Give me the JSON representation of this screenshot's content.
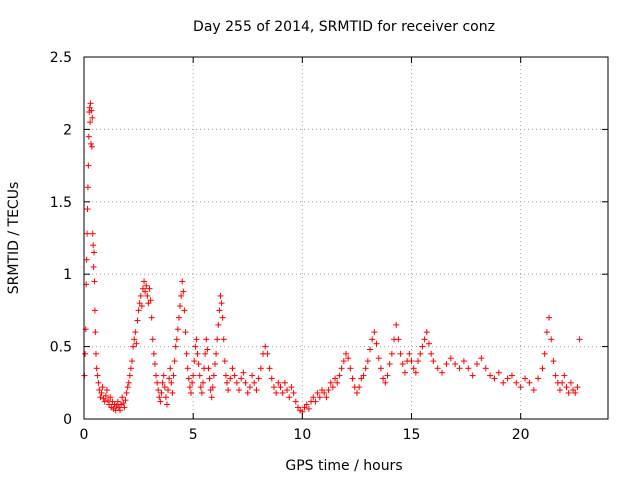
{
  "chart_data": {
    "type": "scatter",
    "title": "Day 255 of 2014, SRMTID for receiver conz",
    "xlabel": "GPS time / hours",
    "ylabel": "SRMTID / TECUs",
    "xlim": [
      0,
      24
    ],
    "ylim": [
      0,
      2.5
    ],
    "x_ticks": [
      0,
      5,
      10,
      15,
      20
    ],
    "x_tick_labels": [
      "0",
      "5",
      "10",
      "15",
      "20"
    ],
    "y_ticks": [
      0,
      0.5,
      1,
      1.5,
      2,
      2.5
    ],
    "y_tick_labels": [
      "0",
      "0.5",
      "1",
      "1.5",
      "2",
      "2.5"
    ],
    "grid": true,
    "marker": "+",
    "color": "#ff0000",
    "series": [
      {
        "name": "SRMTID",
        "points": [
          [
            0.02,
            0.3
          ],
          [
            0.05,
            0.45
          ],
          [
            0.08,
            0.62
          ],
          [
            0.1,
            0.93
          ],
          [
            0.12,
            1.1
          ],
          [
            0.14,
            1.28
          ],
          [
            0.16,
            1.45
          ],
          [
            0.18,
            1.6
          ],
          [
            0.2,
            1.75
          ],
          [
            0.22,
            1.95
          ],
          [
            0.24,
            2.12
          ],
          [
            0.26,
            2.15
          ],
          [
            0.28,
            2.05
          ],
          [
            0.3,
            2.18
          ],
          [
            0.32,
            1.9
          ],
          [
            0.34,
            2.13
          ],
          [
            0.36,
            1.88
          ],
          [
            0.38,
            2.08
          ],
          [
            0.4,
            1.28
          ],
          [
            0.42,
            1.2
          ],
          [
            0.44,
            1.05
          ],
          [
            0.46,
            1.15
          ],
          [
            0.48,
            0.95
          ],
          [
            0.5,
            0.75
          ],
          [
            0.52,
            0.6
          ],
          [
            0.55,
            0.45
          ],
          [
            0.58,
            0.35
          ],
          [
            0.62,
            0.3
          ],
          [
            0.66,
            0.25
          ],
          [
            0.7,
            0.2
          ],
          [
            0.75,
            0.15
          ],
          [
            0.8,
            0.18
          ],
          [
            0.85,
            0.22
          ],
          [
            0.9,
            0.14
          ],
          [
            0.95,
            0.12
          ],
          [
            1.0,
            0.16
          ],
          [
            1.05,
            0.2
          ],
          [
            1.1,
            0.13
          ],
          [
            1.15,
            0.1
          ],
          [
            1.2,
            0.15
          ],
          [
            1.25,
            0.08
          ],
          [
            1.3,
            0.12
          ],
          [
            1.35,
            0.07
          ],
          [
            1.4,
            0.1
          ],
          [
            1.45,
            0.06
          ],
          [
            1.5,
            0.09
          ],
          [
            1.55,
            0.12
          ],
          [
            1.6,
            0.08
          ],
          [
            1.65,
            0.06
          ],
          [
            1.7,
            0.1
          ],
          [
            1.75,
            0.15
          ],
          [
            1.8,
            0.11
          ],
          [
            1.85,
            0.08
          ],
          [
            1.9,
            0.13
          ],
          [
            1.95,
            0.18
          ],
          [
            2.0,
            0.22
          ],
          [
            2.05,
            0.25
          ],
          [
            2.1,
            0.3
          ],
          [
            2.15,
            0.35
          ],
          [
            2.2,
            0.4
          ],
          [
            2.25,
            0.5
          ],
          [
            2.3,
            0.55
          ],
          [
            2.35,
            0.6
          ],
          [
            2.4,
            0.52
          ],
          [
            2.45,
            0.68
          ],
          [
            2.5,
            0.75
          ],
          [
            2.55,
            0.8
          ],
          [
            2.6,
            0.85
          ],
          [
            2.65,
            0.78
          ],
          [
            2.7,
            0.9
          ],
          [
            2.75,
            0.95
          ],
          [
            2.8,
            0.88
          ],
          [
            2.85,
            0.92
          ],
          [
            2.9,
            0.85
          ],
          [
            2.95,
            0.8
          ],
          [
            3.0,
            0.9
          ],
          [
            3.05,
            0.82
          ],
          [
            3.1,
            0.7
          ],
          [
            3.15,
            0.55
          ],
          [
            3.2,
            0.45
          ],
          [
            3.25,
            0.38
          ],
          [
            3.3,
            0.3
          ],
          [
            3.35,
            0.25
          ],
          [
            3.4,
            0.2
          ],
          [
            3.45,
            0.15
          ],
          [
            3.5,
            0.12
          ],
          [
            3.55,
            0.18
          ],
          [
            3.6,
            0.25
          ],
          [
            3.65,
            0.3
          ],
          [
            3.7,
            0.22
          ],
          [
            3.75,
            0.15
          ],
          [
            3.8,
            0.1
          ],
          [
            3.85,
            0.2
          ],
          [
            3.9,
            0.28
          ],
          [
            3.95,
            0.35
          ],
          [
            4.0,
            0.25
          ],
          [
            4.05,
            0.18
          ],
          [
            4.1,
            0.3
          ],
          [
            4.15,
            0.4
          ],
          [
            4.2,
            0.5
          ],
          [
            4.25,
            0.55
          ],
          [
            4.3,
            0.62
          ],
          [
            4.35,
            0.7
          ],
          [
            4.4,
            0.78
          ],
          [
            4.45,
            0.85
          ],
          [
            4.5,
            0.95
          ],
          [
            4.55,
            0.88
          ],
          [
            4.6,
            0.75
          ],
          [
            4.65,
            0.6
          ],
          [
            4.7,
            0.45
          ],
          [
            4.75,
            0.35
          ],
          [
            4.8,
            0.28
          ],
          [
            4.85,
            0.22
          ],
          [
            4.9,
            0.18
          ],
          [
            4.95,
            0.25
          ],
          [
            5.0,
            0.3
          ],
          [
            5.05,
            0.4
          ],
          [
            5.1,
            0.5
          ],
          [
            5.15,
            0.55
          ],
          [
            5.2,
            0.45
          ],
          [
            5.25,
            0.38
          ],
          [
            5.3,
            0.3
          ],
          [
            5.35,
            0.22
          ],
          [
            5.4,
            0.18
          ],
          [
            5.45,
            0.25
          ],
          [
            5.5,
            0.35
          ],
          [
            5.55,
            0.45
          ],
          [
            5.6,
            0.55
          ],
          [
            5.65,
            0.48
          ],
          [
            5.7,
            0.35
          ],
          [
            5.75,
            0.28
          ],
          [
            5.8,
            0.2
          ],
          [
            5.85,
            0.15
          ],
          [
            5.9,
            0.22
          ],
          [
            5.95,
            0.3
          ],
          [
            6.0,
            0.38
          ],
          [
            6.05,
            0.45
          ],
          [
            6.1,
            0.55
          ],
          [
            6.15,
            0.65
          ],
          [
            6.2,
            0.75
          ],
          [
            6.25,
            0.85
          ],
          [
            6.3,
            0.8
          ],
          [
            6.35,
            0.7
          ],
          [
            6.4,
            0.55
          ],
          [
            6.45,
            0.4
          ],
          [
            6.5,
            0.3
          ],
          [
            6.55,
            0.25
          ],
          [
            6.6,
            0.2
          ],
          [
            6.7,
            0.28
          ],
          [
            6.8,
            0.35
          ],
          [
            6.9,
            0.3
          ],
          [
            7.0,
            0.25
          ],
          [
            7.1,
            0.2
          ],
          [
            7.2,
            0.28
          ],
          [
            7.3,
            0.32
          ],
          [
            7.4,
            0.25
          ],
          [
            7.5,
            0.18
          ],
          [
            7.6,
            0.22
          ],
          [
            7.7,
            0.3
          ],
          [
            7.8,
            0.25
          ],
          [
            7.9,
            0.2
          ],
          [
            8.0,
            0.28
          ],
          [
            8.1,
            0.35
          ],
          [
            8.2,
            0.45
          ],
          [
            8.3,
            0.5
          ],
          [
            8.4,
            0.45
          ],
          [
            8.5,
            0.35
          ],
          [
            8.6,
            0.28
          ],
          [
            8.7,
            0.22
          ],
          [
            8.8,
            0.18
          ],
          [
            8.9,
            0.25
          ],
          [
            9.0,
            0.22
          ],
          [
            9.1,
            0.18
          ],
          [
            9.2,
            0.25
          ],
          [
            9.3,
            0.2
          ],
          [
            9.4,
            0.15
          ],
          [
            9.5,
            0.22
          ],
          [
            9.6,
            0.18
          ],
          [
            9.7,
            0.12
          ],
          [
            9.8,
            0.08
          ],
          [
            9.9,
            0.06
          ],
          [
            10.0,
            0.05
          ],
          [
            10.1,
            0.08
          ],
          [
            10.2,
            0.1
          ],
          [
            10.3,
            0.07
          ],
          [
            10.4,
            0.12
          ],
          [
            10.5,
            0.15
          ],
          [
            10.6,
            0.12
          ],
          [
            10.7,
            0.18
          ],
          [
            10.8,
            0.15
          ],
          [
            10.9,
            0.2
          ],
          [
            11.0,
            0.18
          ],
          [
            11.1,
            0.15
          ],
          [
            11.2,
            0.2
          ],
          [
            11.3,
            0.25
          ],
          [
            11.4,
            0.22
          ],
          [
            11.5,
            0.28
          ],
          [
            11.6,
            0.25
          ],
          [
            11.7,
            0.3
          ],
          [
            11.8,
            0.35
          ],
          [
            11.9,
            0.4
          ],
          [
            12.0,
            0.45
          ],
          [
            12.1,
            0.42
          ],
          [
            12.2,
            0.35
          ],
          [
            12.3,
            0.28
          ],
          [
            12.4,
            0.22
          ],
          [
            12.5,
            0.18
          ],
          [
            12.6,
            0.22
          ],
          [
            12.7,
            0.28
          ],
          [
            12.8,
            0.3
          ],
          [
            12.9,
            0.35
          ],
          [
            13.0,
            0.4
          ],
          [
            13.1,
            0.48
          ],
          [
            13.2,
            0.55
          ],
          [
            13.3,
            0.6
          ],
          [
            13.4,
            0.52
          ],
          [
            13.5,
            0.42
          ],
          [
            13.6,
            0.35
          ],
          [
            13.7,
            0.28
          ],
          [
            13.8,
            0.25
          ],
          [
            13.9,
            0.3
          ],
          [
            14.0,
            0.38
          ],
          [
            14.1,
            0.45
          ],
          [
            14.2,
            0.55
          ],
          [
            14.3,
            0.65
          ],
          [
            14.4,
            0.55
          ],
          [
            14.5,
            0.45
          ],
          [
            14.6,
            0.38
          ],
          [
            14.7,
            0.32
          ],
          [
            14.8,
            0.4
          ],
          [
            14.9,
            0.45
          ],
          [
            15.0,
            0.4
          ],
          [
            15.1,
            0.35
          ],
          [
            15.2,
            0.32
          ],
          [
            15.3,
            0.4
          ],
          [
            15.4,
            0.45
          ],
          [
            15.5,
            0.5
          ],
          [
            15.6,
            0.55
          ],
          [
            15.7,
            0.6
          ],
          [
            15.8,
            0.52
          ],
          [
            15.9,
            0.45
          ],
          [
            16.0,
            0.4
          ],
          [
            16.2,
            0.35
          ],
          [
            16.4,
            0.32
          ],
          [
            16.6,
            0.38
          ],
          [
            16.8,
            0.42
          ],
          [
            17.0,
            0.38
          ],
          [
            17.2,
            0.35
          ],
          [
            17.4,
            0.4
          ],
          [
            17.6,
            0.35
          ],
          [
            17.8,
            0.3
          ],
          [
            18.0,
            0.38
          ],
          [
            18.2,
            0.42
          ],
          [
            18.4,
            0.35
          ],
          [
            18.6,
            0.3
          ],
          [
            18.8,
            0.28
          ],
          [
            19.0,
            0.32
          ],
          [
            19.2,
            0.25
          ],
          [
            19.4,
            0.28
          ],
          [
            19.6,
            0.3
          ],
          [
            19.8,
            0.25
          ],
          [
            20.0,
            0.22
          ],
          [
            20.2,
            0.28
          ],
          [
            20.4,
            0.25
          ],
          [
            20.6,
            0.2
          ],
          [
            20.8,
            0.28
          ],
          [
            21.0,
            0.35
          ],
          [
            21.1,
            0.45
          ],
          [
            21.2,
            0.6
          ],
          [
            21.3,
            0.7
          ],
          [
            21.4,
            0.55
          ],
          [
            21.5,
            0.4
          ],
          [
            21.6,
            0.3
          ],
          [
            21.7,
            0.25
          ],
          [
            21.8,
            0.2
          ],
          [
            21.9,
            0.25
          ],
          [
            22.0,
            0.3
          ],
          [
            22.1,
            0.22
          ],
          [
            22.2,
            0.18
          ],
          [
            22.3,
            0.25
          ],
          [
            22.4,
            0.2
          ],
          [
            22.5,
            0.18
          ],
          [
            22.6,
            0.22
          ],
          [
            22.7,
            0.55
          ]
        ]
      }
    ]
  }
}
